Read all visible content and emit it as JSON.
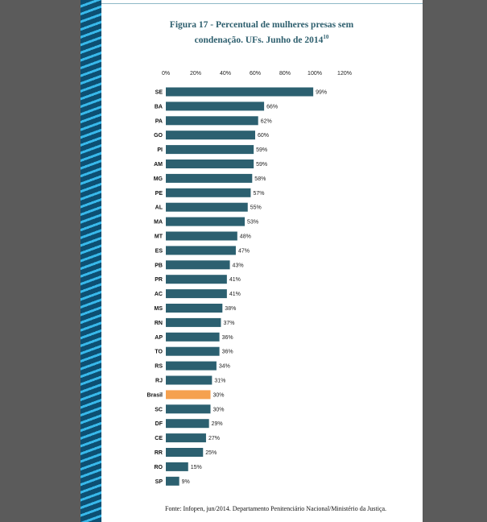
{
  "figure": {
    "title": "Figura 17 - Percentual de mulheres presas sem condenação. UFs. Junho de 2014",
    "footnote_ref": "10",
    "source": "Fonte: Infopen, jun/2014. Departamento Penitenciário Nacional/Ministério da Justiça."
  },
  "colors": {
    "bar": "#2c6070",
    "highlight": "#f5a14f",
    "page_side": "#5b5b5b",
    "stripe_dark": "#0d4f72",
    "stripe_light": "#38b8ea"
  },
  "chart_data": {
    "type": "bar",
    "orientation": "horizontal",
    "title": "Figura 17 - Percentual de mulheres presas sem condenação. UFs. Junho de 2014",
    "xlim": [
      0,
      120
    ],
    "x_ticks": [
      "0%",
      "20%",
      "40%",
      "60%",
      "80%",
      "100%",
      "120%"
    ],
    "x_tick_values": [
      0,
      20,
      40,
      60,
      80,
      100,
      120
    ],
    "axis_position": "top",
    "grid": false,
    "legend": "none",
    "highlight_category": "Brasil",
    "categories": [
      "SE",
      "BA",
      "PA",
      "GO",
      "PI",
      "AM",
      "MG",
      "PE",
      "AL",
      "MA",
      "MT",
      "ES",
      "PB",
      "PR",
      "AC",
      "MS",
      "RN",
      "AP",
      "TO",
      "RS",
      "RJ",
      "Brasil",
      "SC",
      "DF",
      "CE",
      "RR",
      "RO",
      "SP"
    ],
    "values": [
      99,
      66,
      62,
      60,
      59,
      59,
      58,
      57,
      55,
      53,
      48,
      47,
      43,
      41,
      41,
      38,
      37,
      36,
      36,
      34,
      31,
      30,
      30,
      29,
      27,
      25,
      15,
      9
    ],
    "data_labels": [
      "99%",
      "66%",
      "62%",
      "60%",
      "59%",
      "59%",
      "58%",
      "57%",
      "55%",
      "53%",
      "48%",
      "47%",
      "43%",
      "41%",
      "41%",
      "38%",
      "37%",
      "36%",
      "36%",
      "34%",
      "31%",
      "30%",
      "30%",
      "29%",
      "27%",
      "25%",
      "15%",
      "9%"
    ]
  }
}
